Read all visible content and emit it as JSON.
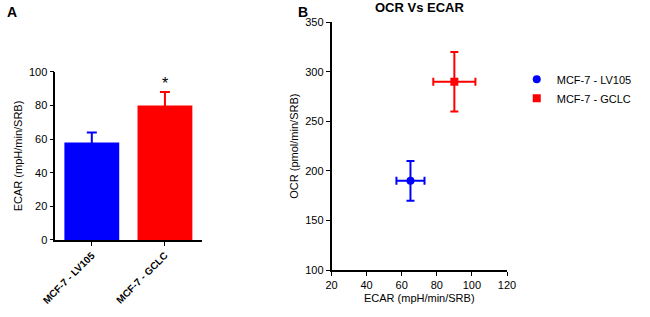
{
  "chart_data": [
    {
      "type": "bar",
      "annotations": [
        {
          "text": "A"
        },
        {
          "text": "*",
          "category": "MCF-7 - GCLC"
        }
      ],
      "categories": [
        "MCF-7 - LV105",
        "MCF-7 - GCLC"
      ],
      "values": [
        58,
        80
      ],
      "errors": [
        6,
        8
      ],
      "colors": [
        "#0000ff",
        "#ff0000"
      ],
      "ylabel": "ECAR (mpH/min/SRB)",
      "ylim": [
        0,
        100
      ],
      "yticks": [
        0,
        20,
        40,
        60,
        80,
        100
      ],
      "grid": false
    },
    {
      "type": "scatter",
      "title": "OCR Vs ECAR",
      "annotations": [
        {
          "text": "B"
        }
      ],
      "xlabel": "ECAR (mpH/min/SRB)",
      "ylabel": "OCR (pmol/min/SRB)",
      "xlim": [
        20,
        120
      ],
      "xticks": [
        20,
        40,
        60,
        80,
        100,
        120
      ],
      "ylim": [
        100,
        350
      ],
      "yticks": [
        100,
        150,
        200,
        250,
        300,
        350
      ],
      "grid": false,
      "legend": "right",
      "series": [
        {
          "name": "MCF-7 - LV105",
          "color": "#0000ff",
          "marker": "circle",
          "x": [
            65
          ],
          "values": [
            190
          ],
          "x_errors": [
            8
          ],
          "errors": [
            20
          ]
        },
        {
          "name": "MCF-7 - GCLC",
          "color": "#ff0000",
          "marker": "square",
          "x": [
            90
          ],
          "values": [
            290
          ],
          "x_errors": [
            12
          ],
          "errors": [
            30
          ]
        }
      ]
    }
  ]
}
